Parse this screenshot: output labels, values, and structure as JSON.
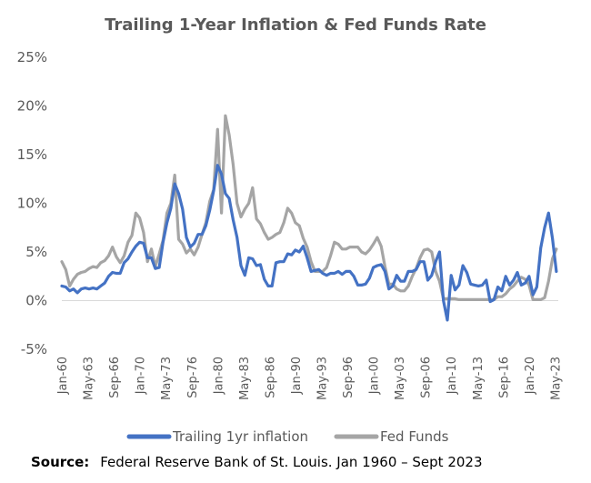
{
  "chart_data": {
    "type": "line",
    "title": "Trailing 1-Year Inflation & Fed Funds Rate",
    "ylim": [
      -5,
      25
    ],
    "yticks": [
      -5,
      0,
      5,
      10,
      15,
      20,
      25
    ],
    "ytick_labels": [
      "-5%",
      "0%",
      "5%",
      "10%",
      "15%",
      "20%",
      "25%"
    ],
    "xlim": [
      1960.0,
      2023.75
    ],
    "xticks": [
      1960.0,
      1963.33,
      1966.67,
      1970.0,
      1973.33,
      1976.67,
      1980.0,
      1983.33,
      1986.67,
      1990.0,
      1993.33,
      1996.67,
      2000.0,
      2003.33,
      2006.67,
      2010.0,
      2013.33,
      2016.67,
      2020.0,
      2023.33
    ],
    "xtick_labels": [
      "Jan-60",
      "May-63",
      "Sep-66",
      "Jan-70",
      "May-73",
      "Sep-76",
      "Jan-80",
      "May-83",
      "Sep-86",
      "Jan-90",
      "May-93",
      "Sep-96",
      "Jan-00",
      "May-03",
      "Sep-06",
      "Jan-10",
      "May-13",
      "Sep-16",
      "Jan-20",
      "May-23"
    ],
    "legend_position": "bottom",
    "grid": false,
    "series": [
      {
        "name": "Trailing 1yr inflation",
        "color": "#4472C4",
        "x": [
          1960.0,
          1960.5,
          1961.0,
          1961.5,
          1962.0,
          1962.5,
          1963.0,
          1963.5,
          1964.0,
          1964.5,
          1965.0,
          1965.5,
          1966.0,
          1966.5,
          1967.0,
          1967.5,
          1968.0,
          1968.5,
          1969.0,
          1969.5,
          1970.0,
          1970.5,
          1971.0,
          1971.5,
          1972.0,
          1972.5,
          1973.0,
          1973.5,
          1974.0,
          1974.5,
          1975.0,
          1975.5,
          1976.0,
          1976.5,
          1977.0,
          1977.5,
          1978.0,
          1978.5,
          1979.0,
          1979.5,
          1980.0,
          1980.5,
          1981.0,
          1981.5,
          1982.0,
          1982.5,
          1983.0,
          1983.5,
          1984.0,
          1984.5,
          1985.0,
          1985.5,
          1986.0,
          1986.5,
          1987.0,
          1987.5,
          1988.0,
          1988.5,
          1989.0,
          1989.5,
          1990.0,
          1990.5,
          1991.0,
          1991.5,
          1992.0,
          1992.5,
          1993.0,
          1993.5,
          1994.0,
          1994.5,
          1995.0,
          1995.5,
          1996.0,
          1996.5,
          1997.0,
          1997.5,
          1998.0,
          1998.5,
          1999.0,
          1999.5,
          2000.0,
          2000.5,
          2001.0,
          2001.5,
          2002.0,
          2002.5,
          2003.0,
          2003.5,
          2004.0,
          2004.5,
          2005.0,
          2005.5,
          2006.0,
          2006.5,
          2007.0,
          2007.5,
          2008.0,
          2008.5,
          2009.0,
          2009.5,
          2010.0,
          2010.5,
          2011.0,
          2011.5,
          2012.0,
          2012.5,
          2013.0,
          2013.5,
          2014.0,
          2014.5,
          2015.0,
          2015.5,
          2016.0,
          2016.5,
          2017.0,
          2017.5,
          2018.0,
          2018.5,
          2019.0,
          2019.5,
          2020.0,
          2020.5,
          2021.0,
          2021.5,
          2022.0,
          2022.5,
          2023.0,
          2023.5
        ],
        "y": [
          1.5,
          1.4,
          1.0,
          1.2,
          0.8,
          1.2,
          1.3,
          1.2,
          1.3,
          1.2,
          1.5,
          1.8,
          2.5,
          2.9,
          2.8,
          2.8,
          3.9,
          4.3,
          5.0,
          5.6,
          6.0,
          5.9,
          4.4,
          4.4,
          3.3,
          3.4,
          6.0,
          8.0,
          9.5,
          12.0,
          11.0,
          9.4,
          6.5,
          5.5,
          5.9,
          6.8,
          6.8,
          7.7,
          9.3,
          11.3,
          13.9,
          13.0,
          11.0,
          10.5,
          8.3,
          6.5,
          3.6,
          2.6,
          4.4,
          4.3,
          3.6,
          3.7,
          2.2,
          1.5,
          1.5,
          3.9,
          4.0,
          4.0,
          4.8,
          4.7,
          5.2,
          5.0,
          5.6,
          4.4,
          3.0,
          3.1,
          3.2,
          2.8,
          2.6,
          2.8,
          2.8,
          3.0,
          2.7,
          3.0,
          3.0,
          2.5,
          1.6,
          1.6,
          1.7,
          2.3,
          3.4,
          3.6,
          3.7,
          3.0,
          1.2,
          1.5,
          2.6,
          2.0,
          2.0,
          3.0,
          3.0,
          3.2,
          4.0,
          4.0,
          2.1,
          2.6,
          4.0,
          5.0,
          0.0,
          -2.0,
          2.6,
          1.1,
          1.6,
          3.6,
          2.9,
          1.7,
          1.6,
          1.5,
          1.6,
          2.1,
          -0.1,
          0.1,
          1.4,
          1.0,
          2.5,
          1.6,
          2.1,
          2.9,
          1.6,
          1.8,
          2.5,
          0.6,
          1.4,
          5.4,
          7.5,
          9.0,
          6.4,
          3.0
        ]
      },
      {
        "name": "Fed Funds",
        "color": "#A5A5A5",
        "x": [
          1960.0,
          1960.5,
          1961.0,
          1961.5,
          1962.0,
          1962.5,
          1963.0,
          1963.5,
          1964.0,
          1964.5,
          1965.0,
          1965.5,
          1966.0,
          1966.5,
          1967.0,
          1967.5,
          1968.0,
          1968.5,
          1969.0,
          1969.5,
          1970.0,
          1970.5,
          1971.0,
          1971.5,
          1972.0,
          1972.5,
          1973.0,
          1973.5,
          1974.0,
          1974.5,
          1975.0,
          1975.5,
          1976.0,
          1976.5,
          1977.0,
          1977.5,
          1978.0,
          1978.5,
          1979.0,
          1979.5,
          1980.0,
          1980.5,
          1981.0,
          1981.5,
          1982.0,
          1982.5,
          1983.0,
          1983.5,
          1984.0,
          1984.5,
          1985.0,
          1985.5,
          1986.0,
          1986.5,
          1987.0,
          1987.5,
          1988.0,
          1988.5,
          1989.0,
          1989.5,
          1990.0,
          1990.5,
          1991.0,
          1991.5,
          1992.0,
          1992.5,
          1993.0,
          1993.5,
          1994.0,
          1994.5,
          1995.0,
          1995.5,
          1996.0,
          1996.5,
          1997.0,
          1997.5,
          1998.0,
          1998.5,
          1999.0,
          1999.5,
          2000.0,
          2000.5,
          2001.0,
          2001.5,
          2002.0,
          2002.5,
          2003.0,
          2003.5,
          2004.0,
          2004.5,
          2005.0,
          2005.5,
          2006.0,
          2006.5,
          2007.0,
          2007.5,
          2008.0,
          2008.5,
          2009.0,
          2009.5,
          2010.0,
          2010.5,
          2011.0,
          2011.5,
          2012.0,
          2012.5,
          2013.0,
          2013.5,
          2014.0,
          2014.5,
          2015.0,
          2015.5,
          2016.0,
          2016.5,
          2017.0,
          2017.5,
          2018.0,
          2018.5,
          2019.0,
          2019.5,
          2020.0,
          2020.5,
          2021.0,
          2021.5,
          2022.0,
          2022.5,
          2023.0,
          2023.5
        ],
        "y": [
          4.0,
          3.2,
          1.5,
          2.2,
          2.7,
          2.9,
          3.0,
          3.3,
          3.5,
          3.4,
          3.9,
          4.1,
          4.6,
          5.5,
          4.5,
          3.9,
          4.6,
          6.0,
          6.7,
          9.0,
          8.5,
          7.0,
          4.0,
          5.3,
          3.5,
          4.8,
          6.2,
          9.0,
          10.0,
          12.9,
          6.3,
          5.8,
          4.9,
          5.3,
          4.7,
          5.5,
          6.8,
          8.0,
          10.2,
          11.4,
          17.6,
          9.0,
          19.0,
          17.0,
          14.0,
          10.0,
          8.6,
          9.4,
          10.0,
          11.6,
          8.4,
          7.9,
          7.0,
          6.3,
          6.5,
          6.8,
          7.0,
          8.0,
          9.5,
          9.0,
          8.0,
          7.7,
          6.4,
          5.5,
          4.0,
          3.0,
          3.0,
          3.0,
          3.4,
          4.6,
          6.0,
          5.8,
          5.3,
          5.3,
          5.5,
          5.5,
          5.5,
          5.0,
          4.8,
          5.2,
          5.8,
          6.5,
          5.6,
          3.5,
          1.7,
          1.7,
          1.2,
          1.0,
          1.0,
          1.5,
          2.5,
          3.3,
          4.4,
          5.2,
          5.3,
          5.0,
          3.0,
          2.0,
          0.2,
          0.2,
          0.2,
          0.2,
          0.1,
          0.1,
          0.1,
          0.1,
          0.1,
          0.1,
          0.1,
          0.1,
          0.1,
          0.1,
          0.4,
          0.4,
          0.7,
          1.2,
          1.5,
          2.0,
          2.4,
          2.2,
          1.6,
          0.1,
          0.1,
          0.1,
          0.3,
          2.0,
          4.3,
          5.3
        ]
      }
    ]
  },
  "source": {
    "label": "Source:",
    "text": "Federal Reserve Bank of St. Louis. Jan 1960 – Sept 2023"
  }
}
